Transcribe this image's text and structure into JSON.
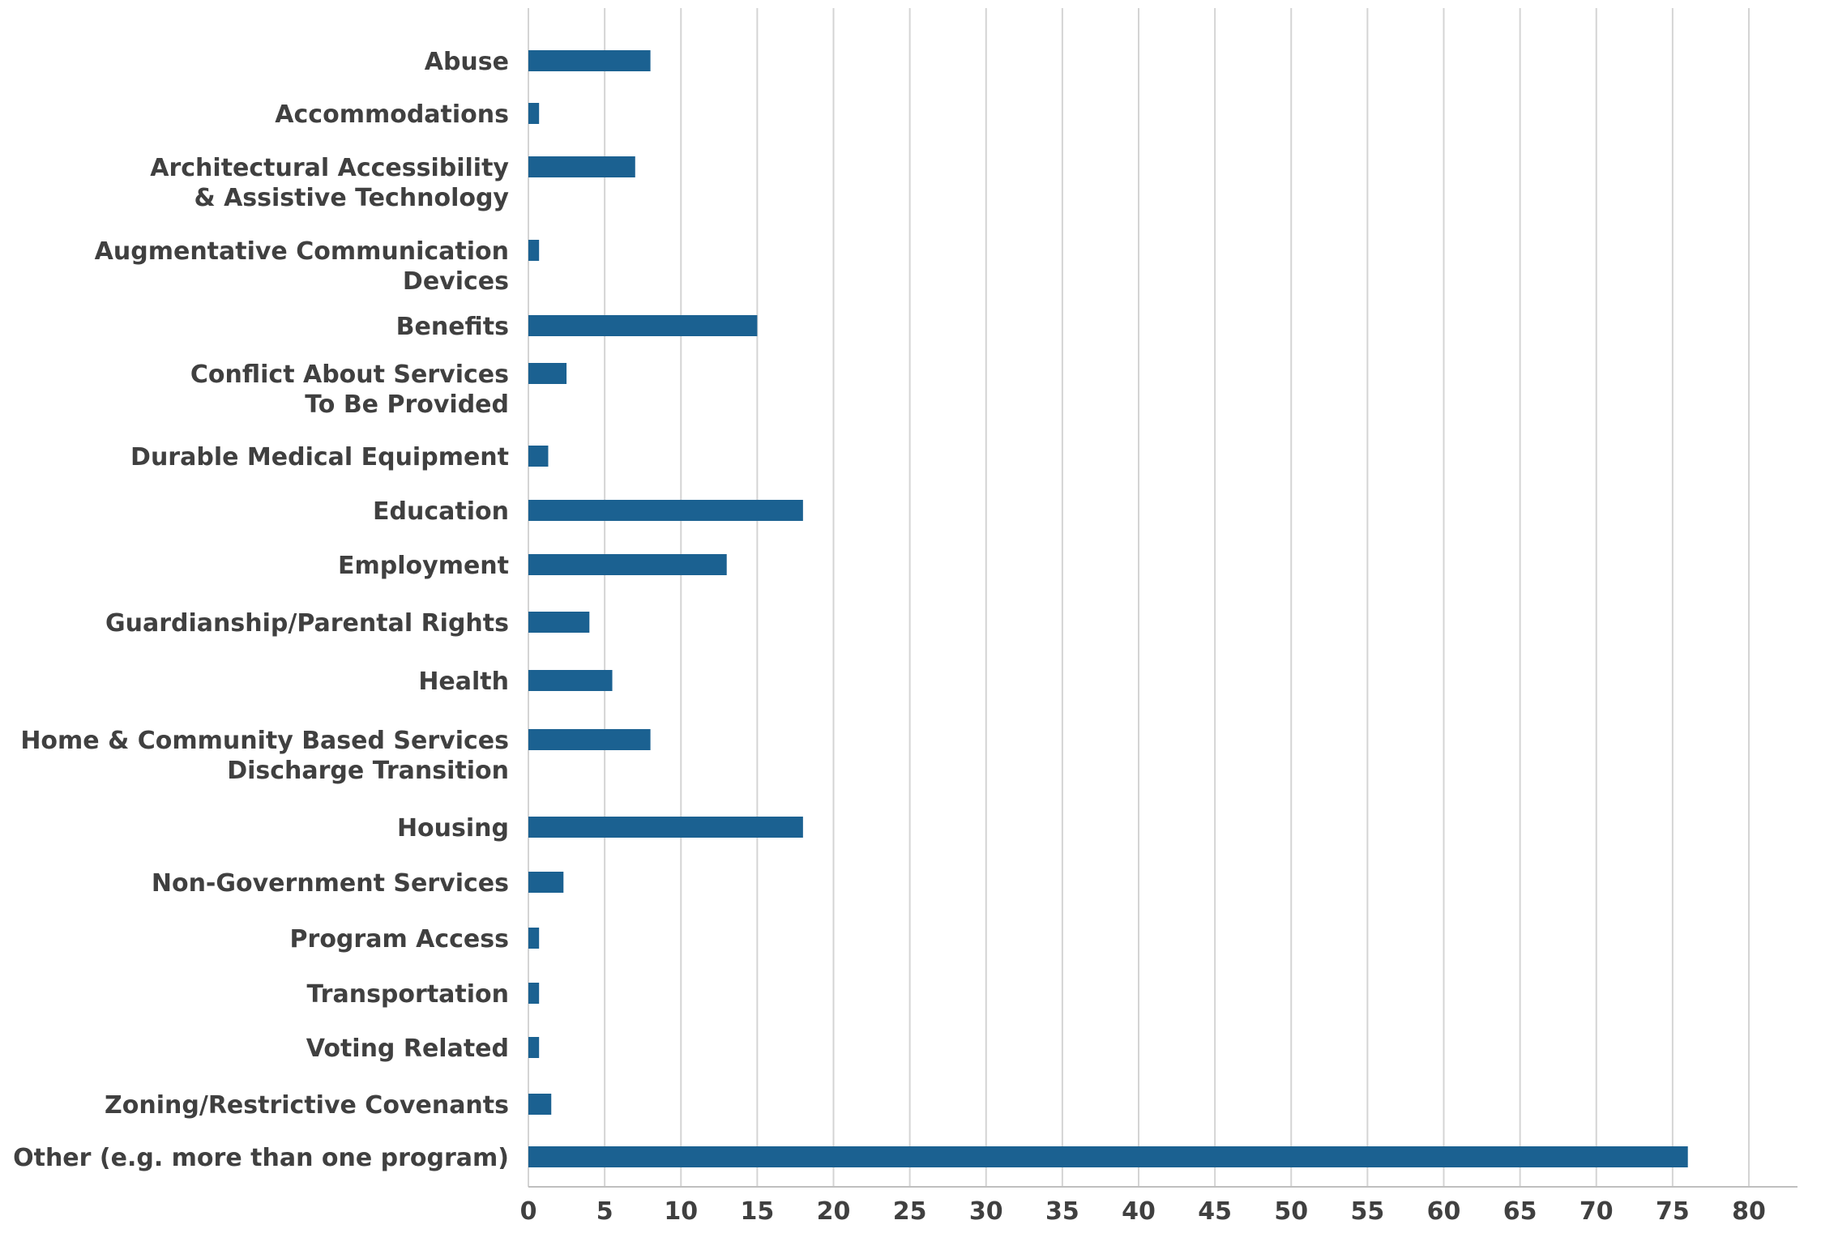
{
  "chart_data": {
    "type": "bar",
    "orientation": "horizontal",
    "categories": [
      [
        "Abuse"
      ],
      [
        "Accommodations"
      ],
      [
        "Architectural Accessibility",
        "& Assistive Technology"
      ],
      [
        "Augmentative Communication",
        "Devices"
      ],
      [
        "Benefits"
      ],
      [
        "Conflict About Services",
        "To Be Provided"
      ],
      [
        "Durable Medical Equipment"
      ],
      [
        "Education"
      ],
      [
        "Employment"
      ],
      [
        "Guardianship/Parental Rights"
      ],
      [
        "Health"
      ],
      [
        "Home & Community Based Services",
        "Discharge Transition"
      ],
      [
        "Housing"
      ],
      [
        "Non-Government Services"
      ],
      [
        "Program Access"
      ],
      [
        "Transportation"
      ],
      [
        "Voting Related"
      ],
      [
        "Zoning/Restrictive Covenants"
      ],
      [
        "Other (e.g. more than one program)"
      ]
    ],
    "values": [
      8,
      0.7,
      7,
      0.7,
      15,
      2.5,
      1.3,
      18,
      13,
      4,
      5.5,
      8,
      18,
      2.3,
      0.7,
      0.7,
      0.7,
      1.5,
      76
    ],
    "xlim": [
      0,
      80
    ],
    "xticks": [
      "0",
      "5",
      "10",
      "15",
      "20",
      "25",
      "30",
      "35",
      "40",
      "45",
      "50",
      "55",
      "60",
      "65",
      "70",
      "75",
      "80"
    ],
    "grid": true,
    "bar_color": "#1b6191",
    "title": "",
    "xlabel": "",
    "ylabel": ""
  }
}
